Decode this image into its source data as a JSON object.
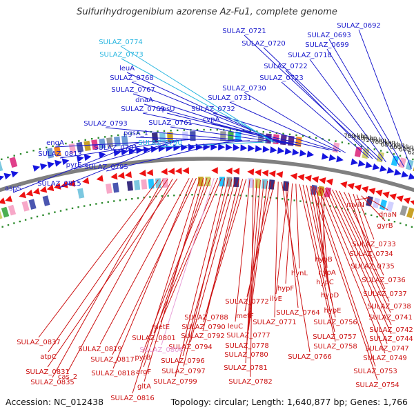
{
  "title": "Sulfurihydrogenibium azorense Az-Fu1, complete genome",
  "accession": "Accession: NC_012438",
  "topology": "Topology: circular; Length: 1,640,877 bp; Genes: 1,766",
  "ticks": [
    {
      "label": "620 kbp",
      "bp": 620000
    },
    {
      "label": "640 kbp",
      "bp": 640000
    },
    {
      "label": "660 kbp",
      "bp": 660000
    },
    {
      "label": "680 kbp",
      "bp": 680000
    },
    {
      "label": "700 kbp",
      "bp": 700000
    },
    {
      "label": "720 kbp",
      "bp": 720000
    },
    {
      "label": "740 kbp",
      "bp": 740000
    },
    {
      "label": "760 kbp",
      "bp": 760000
    }
  ],
  "labels_forward": [
    {
      "text": "SULAZ_0692",
      "color": "#1a1acc"
    },
    {
      "text": "SULAZ_0693",
      "color": "#1a1acc"
    },
    {
      "text": "SULAZ_0699",
      "color": "#1a1acc"
    },
    {
      "text": "SULAZ_0718",
      "color": "#1a1acc"
    },
    {
      "text": "SULAZ_0720",
      "color": "#1a1acc"
    },
    {
      "text": "SULAZ_0721",
      "color": "#1a1acc"
    },
    {
      "text": "SULAZ_0722",
      "color": "#1a1acc"
    },
    {
      "text": "SULAZ_0723",
      "color": "#1a1acc"
    },
    {
      "text": "SULAZ_0730",
      "color": "#1a1acc"
    },
    {
      "text": "SULAZ_0731",
      "color": "#1a1acc"
    },
    {
      "text": "SULAZ_0732",
      "color": "#1a1acc"
    },
    {
      "text": "cvpA",
      "color": "#1a1acc"
    },
    {
      "text": "SULAZ_0761",
      "color": "#1a1acc"
    },
    {
      "text": "rpsU",
      "color": "#1a1acc"
    },
    {
      "text": "SULAZ_0769",
      "color": "#1a1acc"
    },
    {
      "text": "dnaA",
      "color": "#1a1acc"
    },
    {
      "text": "SULAZ_0767",
      "color": "#1a1acc"
    },
    {
      "text": "SULAZ_0768",
      "color": "#1a1acc"
    },
    {
      "text": "leuA",
      "color": "#1a1acc"
    },
    {
      "text": "SULAZ_0773",
      "color": "#29b6e0"
    },
    {
      "text": "SULAZ_0774",
      "color": "#29b6e0"
    },
    {
      "text": "SULAZ_0790",
      "color": "#29b6e0"
    },
    {
      "text": "pgsA_1",
      "color": "#1a1acc"
    },
    {
      "text": "SULAZ_0791",
      "color": "#1a1acc"
    },
    {
      "text": "SULAZ_0793",
      "color": "#1a1acc"
    },
    {
      "text": "SULAZ_0795",
      "color": "#1a1acc"
    },
    {
      "text": "engA",
      "color": "#1a1acc"
    },
    {
      "text": "SULAZ_0813",
      "color": "#1a1acc"
    },
    {
      "text": "pyrE",
      "color": "#1a1acc"
    },
    {
      "text": "SULAZ_0815",
      "color": "#1a1acc"
    },
    {
      "text": "aspS",
      "color": "#1a1acc"
    }
  ],
  "labels_reverse": [
    {
      "text": "mviN",
      "color": "#cc1111"
    },
    {
      "text": "dnaN",
      "color": "#cc1111"
    },
    {
      "text": "gyrB",
      "color": "#cc1111"
    },
    {
      "text": "SULAZ_0733",
      "color": "#cc1111"
    },
    {
      "text": "SULAZ_0734",
      "color": "#cc1111"
    },
    {
      "text": "SULAZ_0735",
      "color": "#cc1111"
    },
    {
      "text": "SULAZ_0736",
      "color": "#cc1111"
    },
    {
      "text": "SULAZ_0737",
      "color": "#cc1111"
    },
    {
      "text": "SULAZ_0738",
      "color": "#cc1111"
    },
    {
      "text": "SULAZ_0741",
      "color": "#cc1111"
    },
    {
      "text": "SULAZ_0742",
      "color": "#cc1111"
    },
    {
      "text": "SULAZ_0744",
      "color": "#cc1111"
    },
    {
      "text": "SULAZ_0747",
      "color": "#cc1111"
    },
    {
      "text": "SULAZ_0749",
      "color": "#cc1111"
    },
    {
      "text": "SULAZ_0753",
      "color": "#cc1111"
    },
    {
      "text": "SULAZ_0754",
      "color": "#cc1111"
    },
    {
      "text": "hypB",
      "color": "#cc1111"
    },
    {
      "text": "hypA",
      "color": "#cc1111"
    },
    {
      "text": "hypC",
      "color": "#cc1111"
    },
    {
      "text": "hypD",
      "color": "#cc1111"
    },
    {
      "text": "hypE",
      "color": "#cc1111"
    },
    {
      "text": "SULAZ_0756",
      "color": "#cc1111"
    },
    {
      "text": "SULAZ_0757",
      "color": "#cc1111"
    },
    {
      "text": "SULAZ_0758",
      "color": "#cc1111"
    },
    {
      "text": "hynL",
      "color": "#cc1111"
    },
    {
      "text": "hypF",
      "color": "#cc1111"
    },
    {
      "text": "ilvE",
      "color": "#cc1111"
    },
    {
      "text": "SULAZ_0764",
      "color": "#cc1111"
    },
    {
      "text": "SULAZ_0766",
      "color": "#cc1111"
    },
    {
      "text": "SULAZ_0771",
      "color": "#cc1111"
    },
    {
      "text": "SULAZ_0772",
      "color": "#cc1111"
    },
    {
      "text": "metF",
      "color": "#cc1111"
    },
    {
      "text": "SULAZ_0777",
      "color": "#cc1111"
    },
    {
      "text": "SULAZ_0778",
      "color": "#cc1111"
    },
    {
      "text": "SULAZ_0780",
      "color": "#cc1111"
    },
    {
      "text": "SULAZ_0781",
      "color": "#cc1111"
    },
    {
      "text": "SULAZ_0782",
      "color": "#cc1111"
    },
    {
      "text": "leuC",
      "color": "#cc1111"
    },
    {
      "text": "SULAZ_0788",
      "color": "#cc1111"
    },
    {
      "text": "SULAZ_0790",
      "color": "#cc1111"
    },
    {
      "text": "SULAZ_0792",
      "color": "#cc1111"
    },
    {
      "text": "SULAZ_0794",
      "color": "#cc1111"
    },
    {
      "text": "SULAZ_0796",
      "color": "#cc1111"
    },
    {
      "text": "SULAZ_0797",
      "color": "#cc1111"
    },
    {
      "text": "SULAZ_0799",
      "color": "#cc1111"
    },
    {
      "text": "metE",
      "color": "#cc1111"
    },
    {
      "text": "SULAZ_0801",
      "color": "#cc1111"
    },
    {
      "text": "SULAZ_0806",
      "color": "#e8a0d8"
    },
    {
      "text": "pyrB",
      "color": "#cc1111"
    },
    {
      "text": "argF",
      "color": "#cc1111"
    },
    {
      "text": "gltA",
      "color": "#cc1111"
    },
    {
      "text": "SULAZ_0816",
      "color": "#cc1111"
    },
    {
      "text": "SULAZ_0817",
      "color": "#cc1111"
    },
    {
      "text": "SULAZ_0818",
      "color": "#cc1111"
    },
    {
      "text": "SULAZ_0819",
      "color": "#cc1111"
    },
    {
      "text": "SULAZ_0831",
      "color": "#cc1111"
    },
    {
      "text": "cas_2",
      "color": "#cc1111"
    },
    {
      "text": "atpC",
      "color": "#cc1111"
    },
    {
      "text": "SULAZ_0835",
      "color": "#cc1111"
    },
    {
      "text": "SULAZ_0837",
      "color": "#cc1111"
    }
  ],
  "colors": {
    "backbone": "#808080",
    "forward_arrow": "#1515e0",
    "reverse_arrow": "#ee1111",
    "tick_dot": "#2e8b2e"
  }
}
